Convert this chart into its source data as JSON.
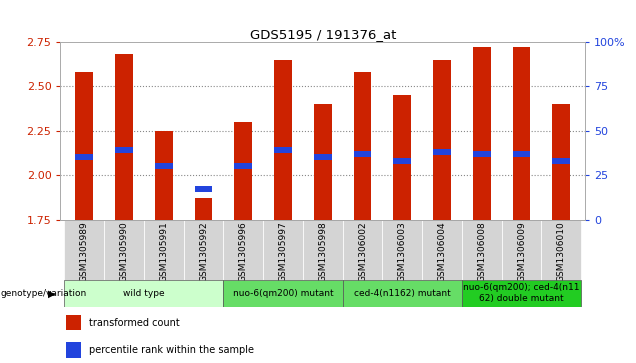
{
  "title": "GDS5195 / 191376_at",
  "samples": [
    "GSM1305989",
    "GSM1305990",
    "GSM1305991",
    "GSM1305992",
    "GSM1305996",
    "GSM1305997",
    "GSM1305998",
    "GSM1306002",
    "GSM1306003",
    "GSM1306004",
    "GSM1306008",
    "GSM1306009",
    "GSM1306010"
  ],
  "red_values": [
    2.58,
    2.68,
    2.25,
    1.87,
    2.3,
    2.65,
    2.4,
    2.58,
    2.45,
    2.65,
    2.72,
    2.72,
    2.4
  ],
  "blue_values": [
    2.1,
    2.14,
    2.05,
    1.92,
    2.05,
    2.14,
    2.1,
    2.12,
    2.08,
    2.13,
    2.12,
    2.12,
    2.08
  ],
  "ymin": 1.75,
  "ymax": 2.75,
  "y_ticks_left": [
    1.75,
    2.0,
    2.25,
    2.5,
    2.75
  ],
  "y_ticks_right": [
    0,
    25,
    50,
    75,
    100
  ],
  "groups": [
    {
      "label": "wild type",
      "start": 0,
      "end": 3,
      "color": "#ccffcc"
    },
    {
      "label": "nuo-6(qm200) mutant",
      "start": 4,
      "end": 6,
      "color": "#66dd66"
    },
    {
      "label": "ced-4(n1162) mutant",
      "start": 7,
      "end": 9,
      "color": "#66dd66"
    },
    {
      "label": "nuo-6(qm200); ced-4(n11\n62) double mutant",
      "start": 10,
      "end": 12,
      "color": "#22cc22"
    }
  ],
  "bar_color": "#cc2200",
  "dot_color": "#2244dd",
  "bar_width": 0.45,
  "xlabel_color": "#cc2200",
  "ylabel_right_color": "#2244dd",
  "grid_color": "#888888",
  "plot_bg": "#ffffff",
  "sample_bg": "#d4d4d4"
}
